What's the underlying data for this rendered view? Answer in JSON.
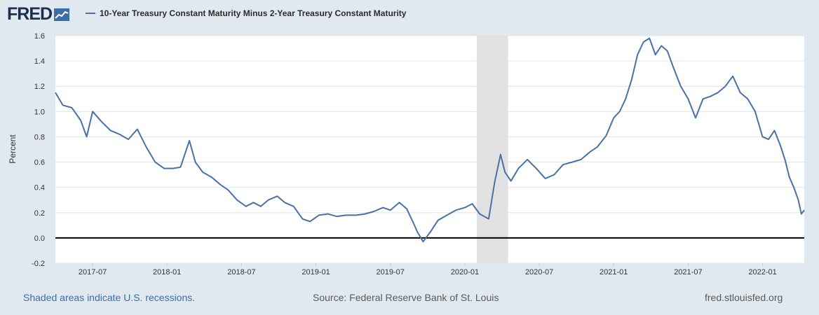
{
  "header": {
    "logo_text": "FRED",
    "series_title": "10-Year Treasury Constant Maturity Minus 2-Year Treasury Constant Maturity"
  },
  "footer": {
    "recession_note": "Shaded areas indicate U.S. recessions.",
    "source": "Source: Federal Reserve Bank of St. Louis",
    "site": "fred.stlouisfed.org"
  },
  "colors": {
    "series": "#4572a7",
    "recession": "#e1e1e1",
    "background": "#e1e9f0",
    "plot": "#ffffff"
  },
  "chart_data": {
    "type": "line",
    "title": "10-Year Treasury Constant Maturity Minus 2-Year Treasury Constant Maturity",
    "xlabel": "",
    "ylabel": "Percent",
    "xlim": [
      2017.25,
      2022.28
    ],
    "ylim": [
      -0.2,
      1.6
    ],
    "y_ticks": [
      -0.2,
      0.0,
      0.2,
      0.4,
      0.6,
      0.8,
      1.0,
      1.2,
      1.4,
      1.6
    ],
    "y_tick_labels": [
      "-0.2",
      "0.0",
      "0.2",
      "0.4",
      "0.6",
      "0.8",
      "1.0",
      "1.2",
      "1.4",
      "1.6"
    ],
    "x_ticks": [
      2017.5,
      2018.0,
      2018.5,
      2019.0,
      2019.5,
      2020.0,
      2020.5,
      2021.0,
      2021.5,
      2022.0
    ],
    "x_tick_labels": [
      "2017-07",
      "2018-01",
      "2018-07",
      "2019-01",
      "2019-07",
      "2020-01",
      "2020-07",
      "2021-01",
      "2021-07",
      "2022-01"
    ],
    "zero_line": 0.0,
    "grid": "horizontal",
    "recession": {
      "start": 2020.08,
      "end": 2020.29
    },
    "series": [
      {
        "name": "10-Year Treasury Constant Maturity Minus 2-Year Treasury Constant Maturity",
        "x": [
          2017.25,
          2017.3,
          2017.36,
          2017.42,
          2017.46,
          2017.5,
          2017.56,
          2017.62,
          2017.68,
          2017.74,
          2017.8,
          2017.86,
          2017.92,
          2017.98,
          2018.04,
          2018.09,
          2018.15,
          2018.19,
          2018.24,
          2018.3,
          2018.36,
          2018.41,
          2018.47,
          2018.53,
          2018.58,
          2018.63,
          2018.68,
          2018.74,
          2018.79,
          2018.85,
          2018.91,
          2018.96,
          2019.02,
          2019.08,
          2019.14,
          2019.2,
          2019.27,
          2019.33,
          2019.39,
          2019.45,
          2019.5,
          2019.56,
          2019.61,
          2019.65,
          2019.68,
          2019.72,
          2019.77,
          2019.82,
          2019.88,
          2019.94,
          2020.0,
          2020.05,
          2020.1,
          2020.16,
          2020.2,
          2020.24,
          2020.27,
          2020.31,
          2020.36,
          2020.42,
          2020.48,
          2020.54,
          2020.6,
          2020.66,
          2020.72,
          2020.78,
          2020.84,
          2020.89,
          2020.95,
          2021.0,
          2021.04,
          2021.08,
          2021.12,
          2021.16,
          2021.2,
          2021.24,
          2021.28,
          2021.32,
          2021.36,
          2021.4,
          2021.45,
          2021.5,
          2021.55,
          2021.6,
          2021.65,
          2021.7,
          2021.75,
          2021.8,
          2021.85,
          2021.9,
          2021.95,
          2022.0,
          2022.04,
          2022.08,
          2022.12,
          2022.15,
          2022.18,
          2022.21,
          2022.24,
          2022.26,
          2022.28
        ],
        "values": [
          1.15,
          1.05,
          1.03,
          0.93,
          0.8,
          1.0,
          0.92,
          0.85,
          0.82,
          0.78,
          0.86,
          0.72,
          0.6,
          0.55,
          0.55,
          0.56,
          0.77,
          0.6,
          0.52,
          0.48,
          0.42,
          0.38,
          0.3,
          0.25,
          0.28,
          0.25,
          0.3,
          0.33,
          0.28,
          0.25,
          0.15,
          0.13,
          0.18,
          0.19,
          0.17,
          0.18,
          0.18,
          0.19,
          0.21,
          0.24,
          0.22,
          0.28,
          0.23,
          0.13,
          0.05,
          -0.03,
          0.05,
          0.14,
          0.18,
          0.22,
          0.24,
          0.27,
          0.19,
          0.15,
          0.44,
          0.66,
          0.52,
          0.45,
          0.55,
          0.62,
          0.55,
          0.47,
          0.5,
          0.58,
          0.6,
          0.62,
          0.68,
          0.72,
          0.81,
          0.95,
          1.0,
          1.1,
          1.25,
          1.45,
          1.55,
          1.58,
          1.45,
          1.52,
          1.48,
          1.35,
          1.2,
          1.1,
          0.95,
          1.1,
          1.12,
          1.15,
          1.2,
          1.28,
          1.15,
          1.1,
          1.0,
          0.8,
          0.78,
          0.85,
          0.73,
          0.62,
          0.48,
          0.4,
          0.3,
          0.19,
          0.22
        ]
      }
    ]
  }
}
